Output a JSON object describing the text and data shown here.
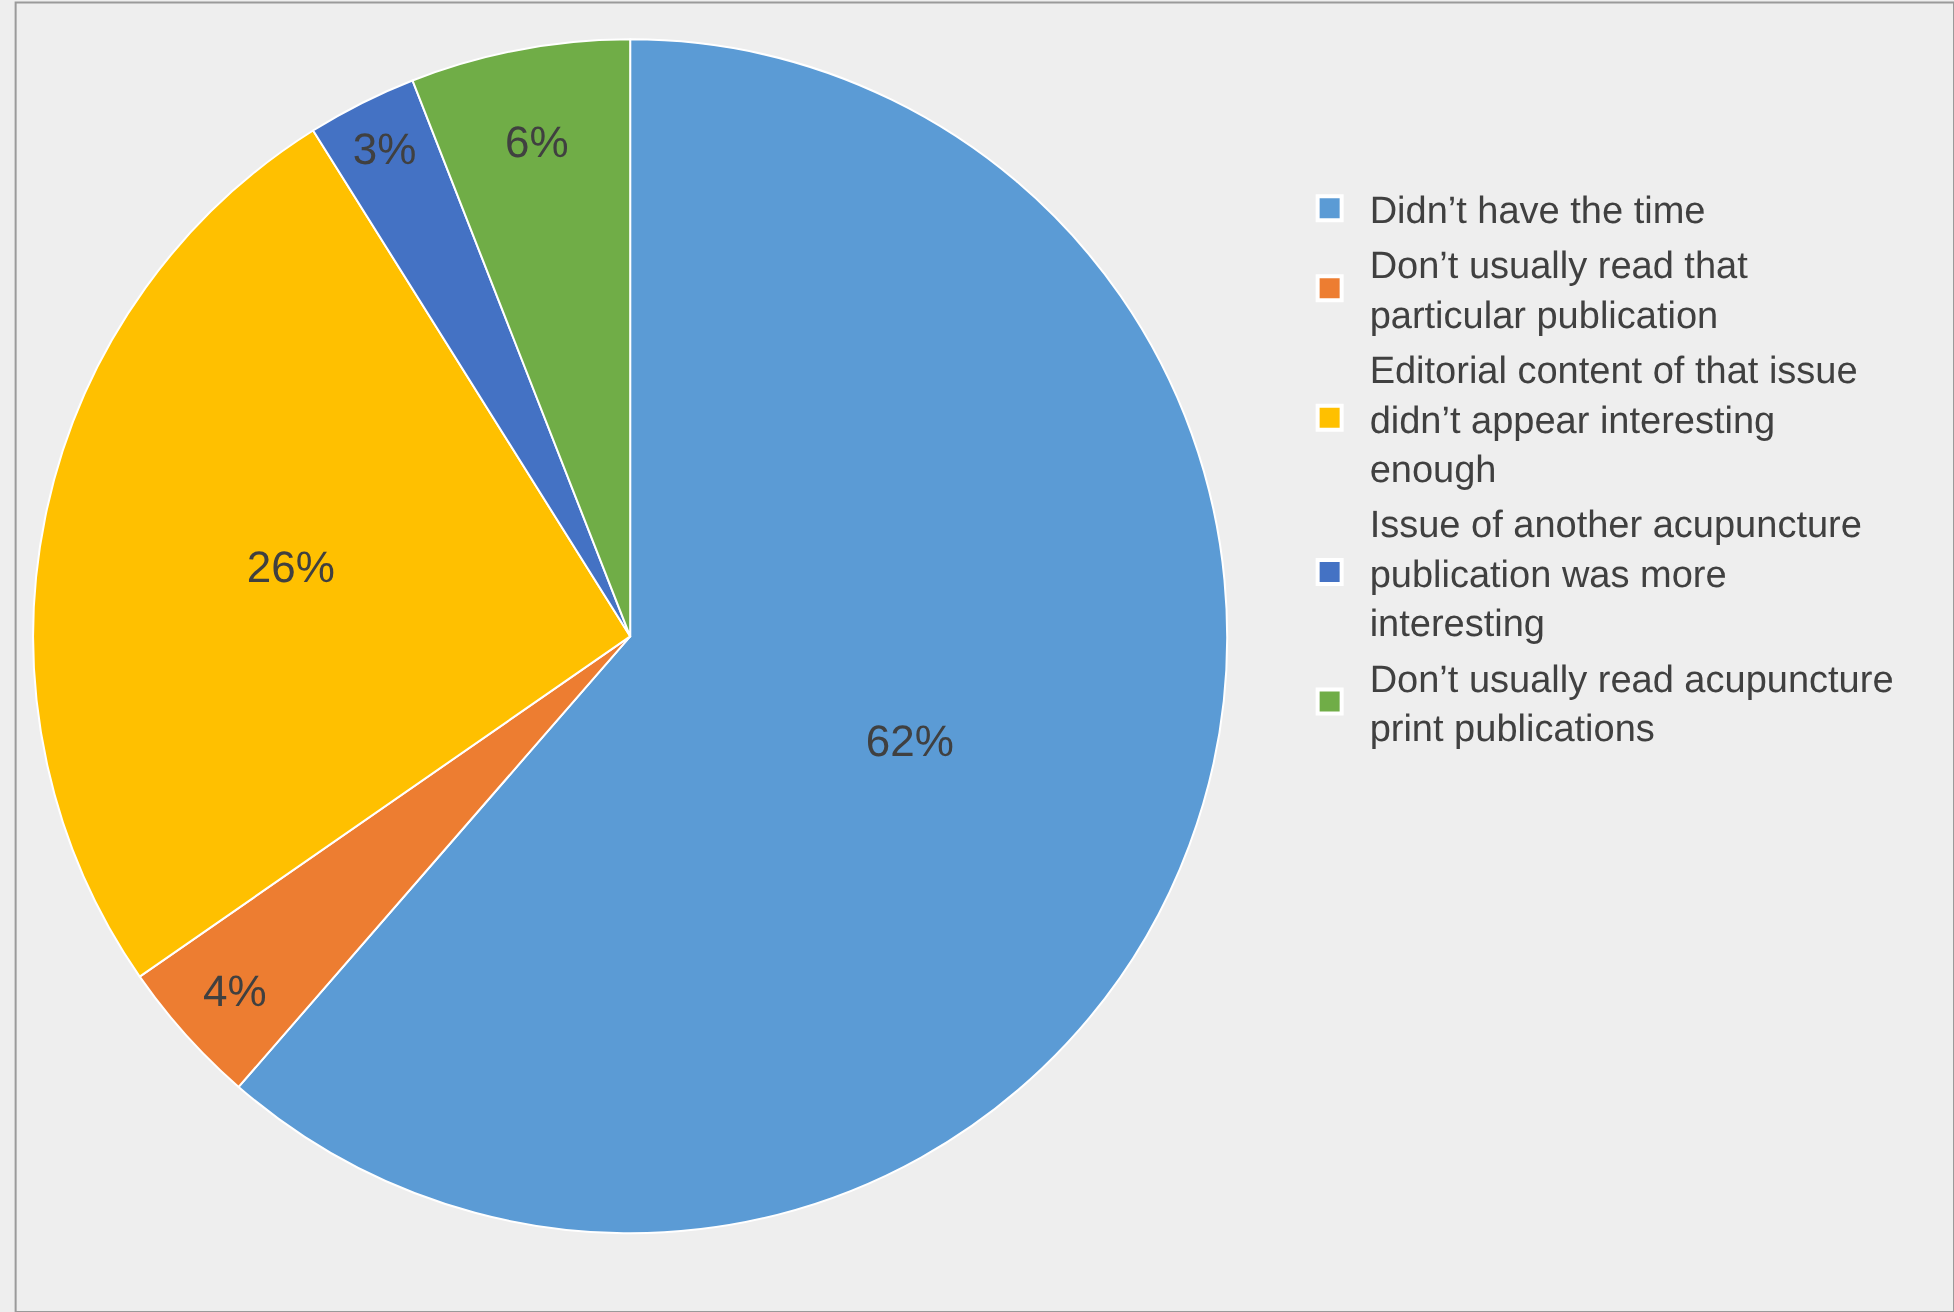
{
  "chart_data": {
    "type": "pie",
    "categories": [
      "Didn’t have the time",
      "Don’t usually read that particular publication",
      "Editorial content of that issue didn’t appear interesting enough",
      "Issue of another acupuncture publication was more interesting",
      "Don’t usually read acupuncture print publications"
    ],
    "values": [
      62,
      4,
      26,
      3,
      6
    ],
    "colors": [
      "#5b9bd5",
      "#ed7d31",
      "#ffc000",
      "#4472c4",
      "#70ad47"
    ],
    "value_labels": [
      "62%",
      "4%",
      "26%",
      "3%",
      "6%"
    ],
    "legend": "right"
  }
}
